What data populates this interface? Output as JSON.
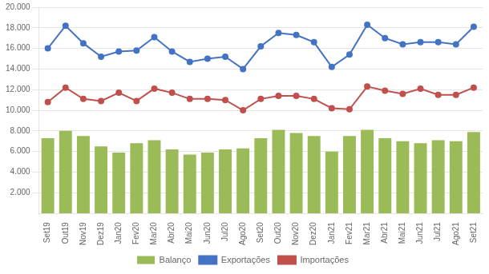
{
  "chart_data": {
    "type": "bar",
    "categories": [
      "Set19",
      "Out19",
      "Nov19",
      "Dez19",
      "Jan20",
      "Fev20",
      "Mar20",
      "Abr20",
      "Mai20",
      "Jun20",
      "Jul20",
      "Ago20",
      "Set20",
      "Out20",
      "Nov20",
      "Dez20",
      "Jan21",
      "Fev21",
      "Mar21",
      "Abr21",
      "Mai21",
      "Jun21",
      "Jul21",
      "Ago21",
      "Set21"
    ],
    "series": [
      {
        "name": "Balanço",
        "type": "bar",
        "color": "#9BBB59",
        "values": [
          7300,
          8000,
          7500,
          6500,
          5900,
          6800,
          7100,
          6200,
          5700,
          5900,
          6200,
          6300,
          7300,
          8100,
          7800,
          7500,
          6000,
          7500,
          8100,
          7300,
          7000,
          6800,
          7100,
          7000,
          7900
        ]
      },
      {
        "name": "Exportações",
        "type": "line",
        "color": "#4472C4",
        "marker": "circle",
        "values": [
          16000,
          18200,
          16500,
          15200,
          15700,
          15800,
          17100,
          15700,
          14700,
          15000,
          15200,
          14000,
          16200,
          17500,
          17300,
          16600,
          14200,
          15400,
          18300,
          17000,
          16400,
          16600,
          16600,
          16400,
          18100
        ]
      },
      {
        "name": "Importações",
        "type": "line",
        "color": "#C0504D",
        "marker": "circle",
        "values": [
          10800,
          12200,
          11100,
          10900,
          11700,
          10900,
          12100,
          11700,
          11100,
          11100,
          11000,
          10000,
          11100,
          11400,
          11400,
          11100,
          10200,
          10100,
          12300,
          11900,
          11600,
          12100,
          11500,
          11500,
          12200
        ]
      }
    ],
    "ylim": [
      0,
      20000
    ],
    "yticks": [
      {
        "value": 2000,
        "label": "2.000"
      },
      {
        "value": 4000,
        "label": "4.000"
      },
      {
        "value": 6000,
        "label": "6.000"
      },
      {
        "value": 8000,
        "label": "8.000"
      },
      {
        "value": 10000,
        "label": "10.000"
      },
      {
        "value": 12000,
        "label": "12.000"
      },
      {
        "value": 14000,
        "label": "14.000"
      },
      {
        "value": 16000,
        "label": "16.000"
      },
      {
        "value": 18000,
        "label": "18.000"
      },
      {
        "value": 20000,
        "label": "20.000"
      }
    ],
    "grid": true,
    "legend": "bottom"
  }
}
